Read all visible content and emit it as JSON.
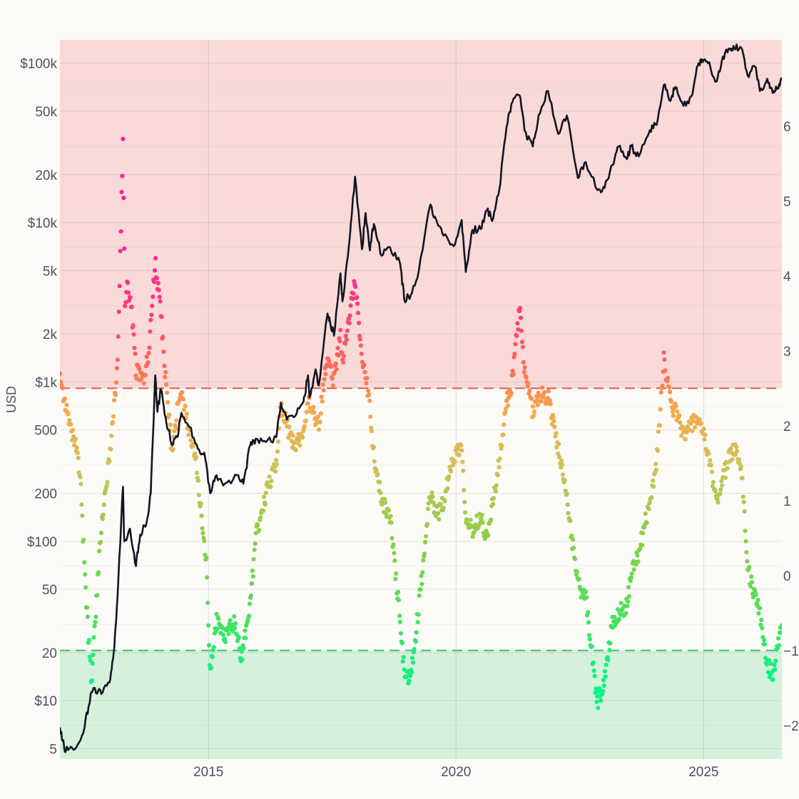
{
  "chart_data": {
    "type": "scatter",
    "title": "",
    "x_axis": {
      "type": "date",
      "range": [
        "2012-01-01",
        "2026-08-01"
      ],
      "ticks": [
        {
          "value": "2015-01-01",
          "label": "2015"
        },
        {
          "value": "2020-01-01",
          "label": "2020"
        },
        {
          "value": "2025-01-01",
          "label": "2025"
        }
      ],
      "grid": true
    },
    "y_axis_left": {
      "label": "USD",
      "scale": "log",
      "range": [
        4.3,
        140000
      ],
      "major_ticks": [
        {
          "value": 5,
          "label": "5"
        },
        {
          "value": 10,
          "label": "$10"
        },
        {
          "value": 20,
          "label": "20"
        },
        {
          "value": 50,
          "label": "50"
        },
        {
          "value": 100,
          "label": "$100"
        },
        {
          "value": 200,
          "label": "200"
        },
        {
          "value": 500,
          "label": "500"
        },
        {
          "value": 1000,
          "label": "$1k"
        },
        {
          "value": 2000,
          "label": "2k"
        },
        {
          "value": 5000,
          "label": "5k"
        },
        {
          "value": 10000,
          "label": "$10k"
        },
        {
          "value": 20000,
          "label": "20k"
        },
        {
          "value": 50000,
          "label": "50k"
        },
        {
          "value": 100000,
          "label": "$100k"
        }
      ],
      "minor_ticks": [
        7,
        30,
        70,
        300,
        700,
        3000,
        7000,
        30000,
        70000
      ],
      "grid": true
    },
    "y_axis_right": {
      "label": "",
      "scale": "linear",
      "range": [
        -2.45,
        7.15
      ],
      "ticks": [
        {
          "value": -2,
          "label": "−2"
        },
        {
          "value": -1,
          "label": "−1"
        },
        {
          "value": 0,
          "label": "0"
        },
        {
          "value": 1,
          "label": "1"
        },
        {
          "value": 2,
          "label": "2"
        },
        {
          "value": 3,
          "label": "3"
        },
        {
          "value": 4,
          "label": "4"
        },
        {
          "value": 5,
          "label": "5"
        },
        {
          "value": 6,
          "label": "6"
        }
      ]
    },
    "zones": [
      {
        "name": "overvalued",
        "from": 2.5,
        "to": 7.15,
        "axis": "right",
        "color": "#f9dad8"
      },
      {
        "name": "undervalued",
        "from": -2.45,
        "to": -1.0,
        "axis": "right",
        "color": "#d5f1dc"
      }
    ],
    "threshold_lines": [
      {
        "value": 2.5,
        "axis": "right",
        "color": "#e05c50",
        "dash": true
      },
      {
        "value": -1.0,
        "axis": "right",
        "color": "#3fbf6a",
        "dash": true
      }
    ],
    "color_scale": {
      "axis": "right",
      "stops": [
        {
          "value": -1.5,
          "color": "#00f58a"
        },
        {
          "value": -0.5,
          "color": "#4ee05a"
        },
        {
          "value": 0.5,
          "color": "#8ccf48"
        },
        {
          "value": 1.5,
          "color": "#cfc25a"
        },
        {
          "value": 2.2,
          "color": "#f6a94a"
        },
        {
          "value": 2.8,
          "color": "#fe6858"
        },
        {
          "value": 3.5,
          "color": "#ff3d78"
        },
        {
          "value": 4.5,
          "color": "#ff1f9b"
        }
      ]
    },
    "price_series": {
      "name": "",
      "axis": "left",
      "color": "#111522",
      "points": [
        [
          "2012-01-01",
          6.8
        ],
        [
          "2012-02-01",
          5.1
        ],
        [
          "2012-03-01",
          4.9
        ],
        [
          "2012-05-01",
          5.1
        ],
        [
          "2012-07-01",
          6.8
        ],
        [
          "2012-08-15",
          11.0
        ],
        [
          "2012-09-15",
          12.0
        ],
        [
          "2012-11-01",
          11.0
        ],
        [
          "2013-01-01",
          13.0
        ],
        [
          "2013-02-01",
          20.0
        ],
        [
          "2013-03-01",
          45.0
        ],
        [
          "2013-04-10",
          220.0
        ],
        [
          "2013-04-20",
          100.0
        ],
        [
          "2013-06-01",
          120.0
        ],
        [
          "2013-07-15",
          70.0
        ],
        [
          "2013-08-15",
          110.0
        ],
        [
          "2013-10-01",
          130.0
        ],
        [
          "2013-11-01",
          200.0
        ],
        [
          "2013-12-04",
          1100.0
        ],
        [
          "2013-12-20",
          650.0
        ],
        [
          "2014-01-15",
          900.0
        ],
        [
          "2014-02-25",
          550.0
        ],
        [
          "2014-04-10",
          400.0
        ],
        [
          "2014-05-15",
          450.0
        ],
        [
          "2014-06-15",
          640.0
        ],
        [
          "2014-08-15",
          520.0
        ],
        [
          "2014-10-15",
          380.0
        ],
        [
          "2014-12-01",
          360.0
        ],
        [
          "2015-01-14",
          200.0
        ],
        [
          "2015-03-01",
          260.0
        ],
        [
          "2015-05-01",
          230.0
        ],
        [
          "2015-08-01",
          260.0
        ],
        [
          "2015-09-15",
          230.0
        ],
        [
          "2015-11-04",
          400.0
        ],
        [
          "2015-12-15",
          440.0
        ],
        [
          "2016-03-01",
          420.0
        ],
        [
          "2016-05-15",
          450.0
        ],
        [
          "2016-06-18",
          740.0
        ],
        [
          "2016-08-01",
          580.0
        ],
        [
          "2016-10-01",
          610.0
        ],
        [
          "2016-12-01",
          750.0
        ],
        [
          "2017-01-04",
          1100.0
        ],
        [
          "2017-01-15",
          800.0
        ],
        [
          "2017-03-01",
          1200.0
        ],
        [
          "2017-03-25",
          950.0
        ],
        [
          "2017-05-25",
          2600.0
        ],
        [
          "2017-06-15",
          2400.0
        ],
        [
          "2017-07-15",
          1950.0
        ],
        [
          "2017-09-01",
          4800.0
        ],
        [
          "2017-09-15",
          3200.0
        ],
        [
          "2017-11-01",
          7000.0
        ],
        [
          "2017-12-17",
          19400.0
        ],
        [
          "2018-02-06",
          6800.0
        ],
        [
          "2018-03-05",
          11500.0
        ],
        [
          "2018-04-06",
          6700.0
        ],
        [
          "2018-05-05",
          9800.0
        ],
        [
          "2018-07-01",
          6200.0
        ],
        [
          "2018-09-01",
          7000.0
        ],
        [
          "2018-11-15",
          5500.0
        ],
        [
          "2018-12-15",
          3300.0
        ],
        [
          "2019-02-01",
          3500.0
        ],
        [
          "2019-04-02",
          5000.0
        ],
        [
          "2019-06-26",
          13000.0
        ],
        [
          "2019-08-15",
          10000.0
        ],
        [
          "2019-10-01",
          8300.0
        ],
        [
          "2019-12-15",
          7100.0
        ],
        [
          "2020-02-12",
          10400.0
        ],
        [
          "2020-03-13",
          4900.0
        ],
        [
          "2020-05-01",
          9000.0
        ],
        [
          "2020-07-01",
          9100.0
        ],
        [
          "2020-08-15",
          11900.0
        ],
        [
          "2020-10-01",
          10600.0
        ],
        [
          "2020-11-15",
          16000.0
        ],
        [
          "2021-01-08",
          40000.0
        ],
        [
          "2021-02-20",
          57000.0
        ],
        [
          "2021-04-14",
          63000.0
        ],
        [
          "2021-05-20",
          38000.0
        ],
        [
          "2021-07-20",
          30000.0
        ],
        [
          "2021-09-01",
          47000.0
        ],
        [
          "2021-11-10",
          67000.0
        ],
        [
          "2022-01-24",
          36000.0
        ],
        [
          "2022-03-29",
          47000.0
        ],
        [
          "2022-06-18",
          19000.0
        ],
        [
          "2022-08-15",
          24000.0
        ],
        [
          "2022-11-09",
          16000.0
        ],
        [
          "2023-01-01",
          16500.0
        ],
        [
          "2023-03-01",
          23000.0
        ],
        [
          "2023-04-14",
          30000.0
        ],
        [
          "2023-06-15",
          25000.0
        ],
        [
          "2023-07-15",
          30000.0
        ],
        [
          "2023-09-10",
          26000.0
        ],
        [
          "2023-12-01",
          38000.0
        ],
        [
          "2024-01-20",
          41000.0
        ],
        [
          "2024-03-13",
          73000.0
        ],
        [
          "2024-05-01",
          58000.0
        ],
        [
          "2024-06-05",
          71000.0
        ],
        [
          "2024-08-05",
          54000.0
        ],
        [
          "2024-10-01",
          62000.0
        ],
        [
          "2024-11-20",
          97000.0
        ],
        [
          "2024-12-17",
          106000.0
        ],
        [
          "2025-02-01",
          100000.0
        ],
        [
          "2025-04-08",
          77000.0
        ],
        [
          "2025-05-22",
          110000.0
        ],
        [
          "2025-07-14",
          122000.0
        ],
        [
          "2025-08-14",
          124000.0
        ],
        [
          "2025-10-06",
          125000.0
        ],
        [
          "2025-11-21",
          84000.0
        ],
        [
          "2026-01-15",
          95000.0
        ],
        [
          "2026-02-20",
          67000.0
        ],
        [
          "2026-04-15",
          80000.0
        ],
        [
          "2026-05-25",
          65000.0
        ],
        [
          "2026-07-01",
          70000.0
        ],
        [
          "2026-08-01",
          78000.0
        ]
      ]
    },
    "score_series": {
      "name": "",
      "axis": "right",
      "marker": "dot",
      "anchors": [
        [
          "2012-01-01",
          2.75
        ],
        [
          "2012-02-01",
          2.35
        ],
        [
          "2012-03-15",
          1.95
        ],
        [
          "2012-05-01",
          1.7
        ],
        [
          "2012-06-01",
          1.25
        ],
        [
          "2012-07-01",
          0.1
        ],
        [
          "2012-08-01",
          -0.9
        ],
        [
          "2012-08-20",
          -1.4
        ],
        [
          "2012-10-15",
          0.2
        ],
        [
          "2012-11-01",
          0.6
        ],
        [
          "2012-12-15",
          1.3
        ],
        [
          "2013-02-01",
          2.2
        ],
        [
          "2013-03-01",
          2.8
        ],
        [
          "2013-04-10",
          5.8
        ],
        [
          "2013-04-25",
          3.6
        ],
        [
          "2013-05-15",
          3.9
        ],
        [
          "2013-06-15",
          3.5
        ],
        [
          "2013-07-15",
          2.75
        ],
        [
          "2013-09-01",
          2.6
        ],
        [
          "2013-10-15",
          2.9
        ],
        [
          "2013-12-04",
          4.2
        ],
        [
          "2014-01-15",
          3.5
        ],
        [
          "2014-02-20",
          2.6
        ],
        [
          "2014-04-10",
          1.6
        ],
        [
          "2014-05-15",
          2.2
        ],
        [
          "2014-06-15",
          2.4
        ],
        [
          "2014-08-15",
          1.9
        ],
        [
          "2014-10-01",
          1.5
        ],
        [
          "2014-12-15",
          0.2
        ],
        [
          "2015-01-14",
          -1.3
        ],
        [
          "2015-03-01",
          -0.6
        ],
        [
          "2015-05-01",
          -0.8
        ],
        [
          "2015-07-15",
          -0.6
        ],
        [
          "2015-09-01",
          -1.1
        ],
        [
          "2015-11-04",
          -0.4
        ],
        [
          "2015-12-15",
          0.5
        ],
        [
          "2016-03-01",
          1.1
        ],
        [
          "2016-05-15",
          1.5
        ],
        [
          "2016-06-18",
          2.3
        ],
        [
          "2016-08-01",
          2.0
        ],
        [
          "2016-10-01",
          1.7
        ],
        [
          "2016-12-15",
          2.0
        ],
        [
          "2017-01-04",
          2.3
        ],
        [
          "2017-03-25",
          2.0
        ],
        [
          "2017-05-25",
          2.9
        ],
        [
          "2017-07-15",
          2.6
        ],
        [
          "2017-09-01",
          3.2
        ],
        [
          "2017-09-15",
          2.8
        ],
        [
          "2017-12-17",
          4.0
        ],
        [
          "2018-02-06",
          2.8
        ],
        [
          "2018-03-05",
          2.7
        ],
        [
          "2018-04-06",
          2.2
        ],
        [
          "2018-05-05",
          1.6
        ],
        [
          "2018-07-01",
          1.0
        ],
        [
          "2018-09-01",
          0.8
        ],
        [
          "2018-11-15",
          -0.6
        ],
        [
          "2018-12-15",
          -1.3
        ],
        [
          "2019-02-01",
          -1.4
        ],
        [
          "2019-04-02",
          -0.4
        ],
        [
          "2019-06-26",
          1.1
        ],
        [
          "2019-08-15",
          0.8
        ],
        [
          "2019-10-01",
          1.0
        ],
        [
          "2019-12-15",
          1.6
        ],
        [
          "2020-02-12",
          1.75
        ],
        [
          "2020-03-13",
          0.8
        ],
        [
          "2020-05-01",
          0.6
        ],
        [
          "2020-07-01",
          0.8
        ],
        [
          "2020-08-15",
          0.5
        ],
        [
          "2020-10-01",
          1.0
        ],
        [
          "2020-11-15",
          1.5
        ],
        [
          "2021-01-08",
          2.3
        ],
        [
          "2021-02-20",
          2.6
        ],
        [
          "2021-04-14",
          3.6
        ],
        [
          "2021-05-20",
          2.7
        ],
        [
          "2021-07-20",
          2.2
        ],
        [
          "2021-09-01",
          2.4
        ],
        [
          "2021-11-10",
          2.4
        ],
        [
          "2022-01-24",
          1.7
        ],
        [
          "2022-03-29",
          1.0
        ],
        [
          "2022-06-18",
          -0.1
        ],
        [
          "2022-08-15",
          -0.3
        ],
        [
          "2022-11-09",
          -1.7
        ],
        [
          "2023-01-01",
          -1.4
        ],
        [
          "2023-03-01",
          -0.6
        ],
        [
          "2023-04-14",
          -0.5
        ],
        [
          "2023-06-15",
          -0.4
        ],
        [
          "2023-07-15",
          0.0
        ],
        [
          "2023-09-10",
          0.3
        ],
        [
          "2023-12-01",
          1.0
        ],
        [
          "2024-01-20",
          1.5
        ],
        [
          "2024-03-13",
          2.9
        ],
        [
          "2024-05-01",
          2.3
        ],
        [
          "2024-06-05",
          2.2
        ],
        [
          "2024-08-05",
          1.9
        ],
        [
          "2024-10-01",
          2.0
        ],
        [
          "2024-11-20",
          2.1
        ],
        [
          "2024-12-17",
          2.0
        ],
        [
          "2025-02-01",
          1.6
        ],
        [
          "2025-04-08",
          1.0
        ],
        [
          "2025-05-22",
          1.3
        ],
        [
          "2025-07-14",
          1.6
        ],
        [
          "2025-08-14",
          1.7
        ],
        [
          "2025-10-06",
          1.5
        ],
        [
          "2025-11-21",
          0.1
        ],
        [
          "2026-01-15",
          -0.3
        ],
        [
          "2026-02-20",
          -0.5
        ],
        [
          "2026-04-15",
          -1.2
        ],
        [
          "2026-05-25",
          -1.3
        ],
        [
          "2026-07-01",
          -1.0
        ],
        [
          "2026-08-01",
          -0.6
        ]
      ]
    }
  }
}
